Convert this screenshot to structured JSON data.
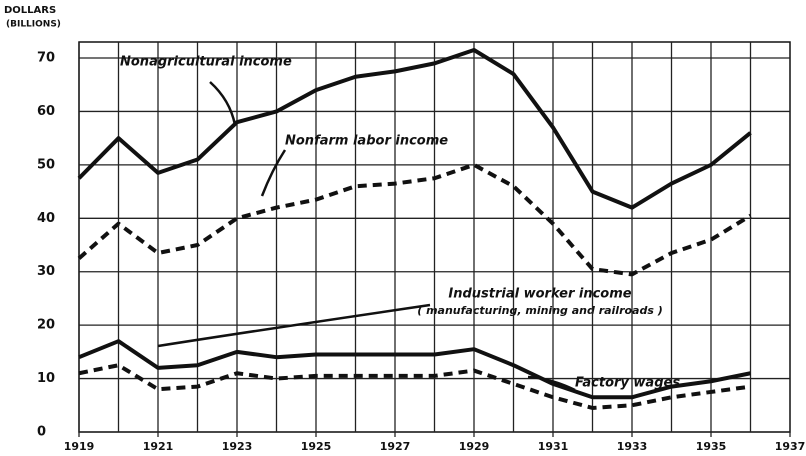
{
  "chart_data": {
    "type": "line",
    "y_label": "DOLLARS",
    "y_unit": "(BILLIONS)",
    "annotations": [
      "( manufacturing, mining and railroads )"
    ],
    "x": [
      1919,
      1920,
      1921,
      1922,
      1923,
      1924,
      1925,
      1926,
      1927,
      1928,
      1929,
      1930,
      1931,
      1932,
      1933,
      1934,
      1935,
      1936
    ],
    "series": [
      {
        "name": "Nonagricultural income",
        "color": "#111",
        "style": "solid",
        "values": [
          47.5,
          55,
          48.5,
          51,
          58,
          60,
          64,
          66.5,
          67.5,
          69,
          71.5,
          67,
          57,
          45,
          42,
          46.5,
          50,
          56
        ]
      },
      {
        "name": "Nonfarm labor income",
        "color": "#111",
        "style": "dashed",
        "values": [
          32.5,
          39,
          33.5,
          35,
          40,
          42,
          43.5,
          46,
          46.5,
          47.5,
          50,
          46,
          39,
          30.5,
          29.5,
          33.5,
          36,
          40.5
        ]
      },
      {
        "name": "Industrial worker income",
        "color": "#111",
        "style": "solid",
        "values": [
          14,
          17,
          12,
          12.5,
          15,
          14,
          14.5,
          14.5,
          14.5,
          14.5,
          15.5,
          12.5,
          9,
          6.5,
          6.5,
          8.5,
          9.5,
          11
        ]
      },
      {
        "name": "Factory wages",
        "color": "#111",
        "style": "dashed",
        "values": [
          11,
          12.5,
          8,
          8.5,
          11,
          10,
          10.5,
          10.5,
          10.5,
          10.5,
          11.5,
          9,
          6.5,
          4.5,
          5,
          6.5,
          7.5,
          8.5
        ]
      }
    ],
    "xlim": [
      1919,
      1937
    ],
    "xticks": [
      1919,
      1921,
      1923,
      1925,
      1927,
      1929,
      1931,
      1933,
      1935,
      1937
    ],
    "ylim": [
      0,
      73
    ],
    "yticks": [
      0,
      10,
      20,
      30,
      40,
      50,
      60,
      70
    ],
    "grid": true
  }
}
